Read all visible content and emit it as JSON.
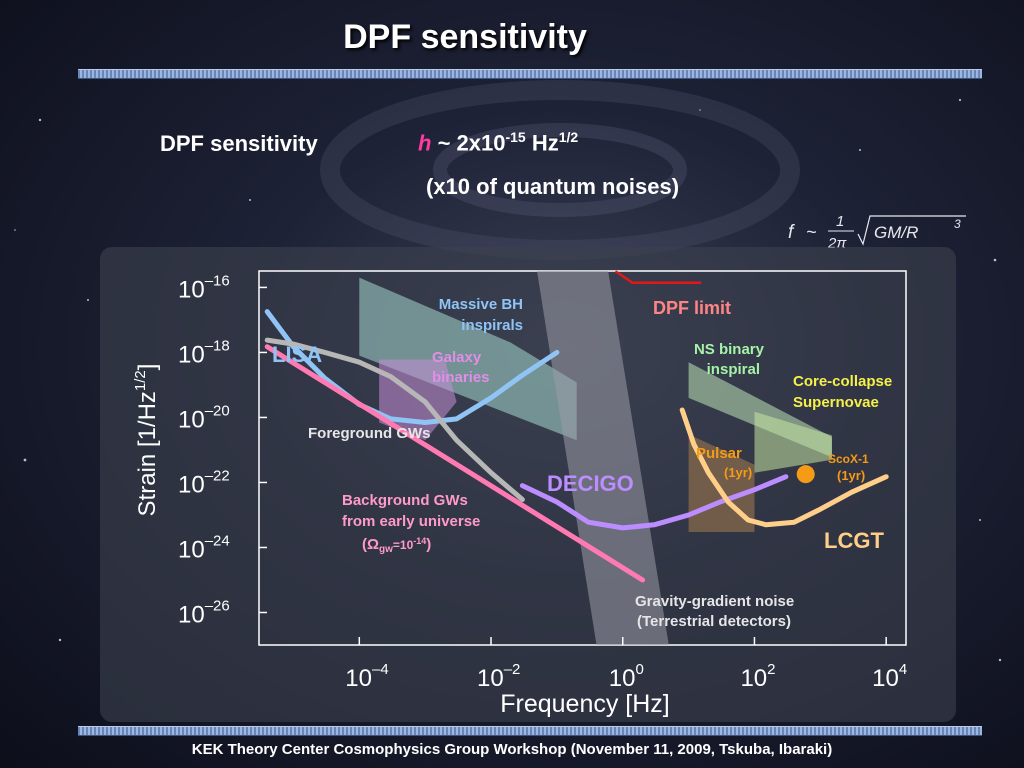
{
  "slide": {
    "title": "DPF sensitivity",
    "sensitivity_label": "DPF sensitivity",
    "sensitivity_h": "h",
    "sensitivity_tilde": " ~ 2x10",
    "sensitivity_exp": "-15",
    "sensitivity_unit": " Hz",
    "sensitivity_unit_exp": "1/2",
    "note": "(x10 of quantum noises)",
    "formula": "f ~ 1/2π √(GM/R³)",
    "footer": "KEK Theory Center Cosmophysics Group Workshop (November 11, 2009, Tskuba, Ibaraki)"
  },
  "chart_data": {
    "type": "line",
    "x_scale": "log",
    "y_scale": "log",
    "xlim": [
      3e-06,
      20000.0
    ],
    "ylim": [
      1e-27,
      3.2e-16
    ],
    "x_ticks": [
      {
        "value": 0.0001,
        "base": "10",
        "exp": "–4"
      },
      {
        "value": 0.01,
        "base": "10",
        "exp": "–2"
      },
      {
        "value": 1,
        "base": "10",
        "exp": "0"
      },
      {
        "value": 100.0,
        "base": "10",
        "exp": "2"
      },
      {
        "value": 10000.0,
        "base": "10",
        "exp": "4"
      }
    ],
    "y_ticks": [
      {
        "value": 1e-16,
        "base": "10",
        "exp": "–16"
      },
      {
        "value": 1e-18,
        "base": "10",
        "exp": "–18"
      },
      {
        "value": 1e-20,
        "base": "10",
        "exp": "–20"
      },
      {
        "value": 1e-22,
        "base": "10",
        "exp": "–22"
      },
      {
        "value": 1e-24,
        "base": "10",
        "exp": "–24"
      },
      {
        "value": 1e-26,
        "base": "10",
        "exp": "–26"
      }
    ],
    "xlabel": "Frequency   [Hz]",
    "ylabel_main": "Strain   [1/Hz",
    "ylabel_exp": "1/2",
    "ylabel_close": "]",
    "series": [
      {
        "name": "LISA",
        "color": "#8fc4f5",
        "points": [
          [
            4e-06,
            1.8e-17
          ],
          [
            1e-05,
            1.5e-18
          ],
          [
            3e-05,
            1.6e-19
          ],
          [
            0.0001,
            2.5e-20
          ],
          [
            0.0003,
            9e-21
          ],
          [
            0.001,
            7e-21
          ],
          [
            0.003,
            9e-21
          ],
          [
            0.01,
            4e-20
          ],
          [
            0.03,
            2e-19
          ],
          [
            0.1,
            1e-18
          ]
        ]
      },
      {
        "name": "DECIGO",
        "color": "#bb8dff",
        "points": [
          [
            0.03,
            8e-23
          ],
          [
            0.1,
            2.5e-23
          ],
          [
            0.3,
            6e-24
          ],
          [
            1,
            4e-24
          ],
          [
            3,
            5e-24
          ],
          [
            10,
            1e-23
          ],
          [
            30,
            2.5e-23
          ],
          [
            100,
            6e-23
          ],
          [
            300,
            1.5e-22
          ]
        ]
      },
      {
        "name": "LCGT",
        "color": "#ffcf8a",
        "points": [
          [
            8,
            1.7e-20
          ],
          [
            12,
            1.5e-21
          ],
          [
            20,
            2e-22
          ],
          [
            40,
            2.5e-23
          ],
          [
            80,
            7e-24
          ],
          [
            150,
            5e-24
          ],
          [
            400,
            6e-24
          ],
          [
            1000,
            1.5e-23
          ],
          [
            3000,
            5e-23
          ],
          [
            10000.0,
            1.5e-22
          ]
        ]
      },
      {
        "name": "Foreground GWs",
        "color": "#b7b7b7",
        "points": [
          [
            4e-06,
            2.4e-18
          ],
          [
            1e-05,
            1.8e-18
          ],
          [
            3e-05,
            1e-18
          ],
          [
            0.0001,
            5e-19
          ],
          [
            0.0003,
            1.8e-19
          ],
          [
            0.001,
            3e-20
          ],
          [
            0.003,
            2e-21
          ],
          [
            0.01,
            2e-22
          ],
          [
            0.03,
            3e-23
          ]
        ]
      },
      {
        "name": "Background GWs from early universe",
        "color": "#ff7ab3",
        "points": [
          [
            4e-06,
            1.5e-18
          ],
          [
            2,
            1e-25
          ]
        ]
      },
      {
        "name": "DPF limit",
        "color": "#e01818",
        "points": [
          [
            0.8,
            3e-16
          ],
          [
            1.4,
            1.4e-16
          ],
          [
            15,
            1.4e-16
          ]
        ]
      }
    ],
    "regions": [
      {
        "name": "Massive BH inspirals",
        "color": "#a6d9cf",
        "points": [
          [
            0.0001,
            2e-16
          ],
          [
            0.02,
            2e-18
          ],
          [
            0.2,
            1.2e-19
          ],
          [
            0.2,
            2e-21
          ],
          [
            0.0001,
            8e-19
          ]
        ]
      },
      {
        "name": "Galaxy binaries",
        "color": "#c58ed6",
        "points": [
          [
            0.0002,
            6e-19
          ],
          [
            0.002,
            6e-19
          ],
          [
            0.003,
            3e-20
          ],
          [
            0.001,
            2e-21
          ],
          [
            0.0002,
            7e-21
          ]
        ]
      },
      {
        "name": "NS binary inspiral",
        "color": "#bfe6b8",
        "points": [
          [
            10,
            5e-19
          ],
          [
            1500,
            2.5e-21
          ],
          [
            1500,
            6e-22
          ],
          [
            10,
            4e-20
          ]
        ]
      },
      {
        "name": "Core-collapse Supernovae",
        "color": "#c6e6a0",
        "points": [
          [
            100,
            1.5e-20
          ],
          [
            1500,
            2.8e-21
          ],
          [
            1500,
            5e-22
          ],
          [
            100,
            2e-22
          ]
        ]
      },
      {
        "name": "Pulsar (1yr)",
        "color": "#a67b4d",
        "points": [
          [
            10,
            3e-21
          ],
          [
            100,
            3.5e-22
          ],
          [
            100,
            3e-24
          ],
          [
            10,
            3e-24
          ]
        ]
      },
      {
        "name": "Gravity-gradient noise (Terrestrial detectors)",
        "color": "#9a9aa6",
        "points": [
          [
            0.05,
            3.2e-16
          ],
          [
            0.6,
            3.2e-16
          ],
          [
            5,
            1e-27
          ],
          [
            0.4,
            1e-27
          ]
        ]
      }
    ],
    "points": [
      {
        "name": "ScoX-1 (1yr)",
        "x": 600,
        "y": 1.8e-22,
        "color": "#f59b15"
      }
    ],
    "labels": {
      "lisa": "LISA",
      "decigo": "DECIGO",
      "lcgt": "LCGT",
      "dpf_limit": "DPF limit",
      "massive_bh_1": "Massive BH",
      "massive_bh_2": "inspirals",
      "galaxy_1": "Galaxy",
      "galaxy_2": "binaries",
      "ns_1": "NS binary",
      "ns_2": "inspiral",
      "sn_1": "Core-collapse",
      "sn_2": "Supernovae",
      "pulsar_1": "Pulsar",
      "pulsar_2": "(1yr)",
      "scox_1": "ScoX-1",
      "scox_2": "(1yr)",
      "foreground": "Foreground GWs",
      "background_1": "Background GWs",
      "background_2": "from early universe",
      "background_3a": "(Ω",
      "background_3b": "gw",
      "background_3c": "=10",
      "background_3d": "-14",
      "background_3e": ")",
      "gg_1": "Gravity-gradient noise",
      "gg_2": " (Terrestrial detectors)"
    },
    "grid": false,
    "legend": "none"
  }
}
